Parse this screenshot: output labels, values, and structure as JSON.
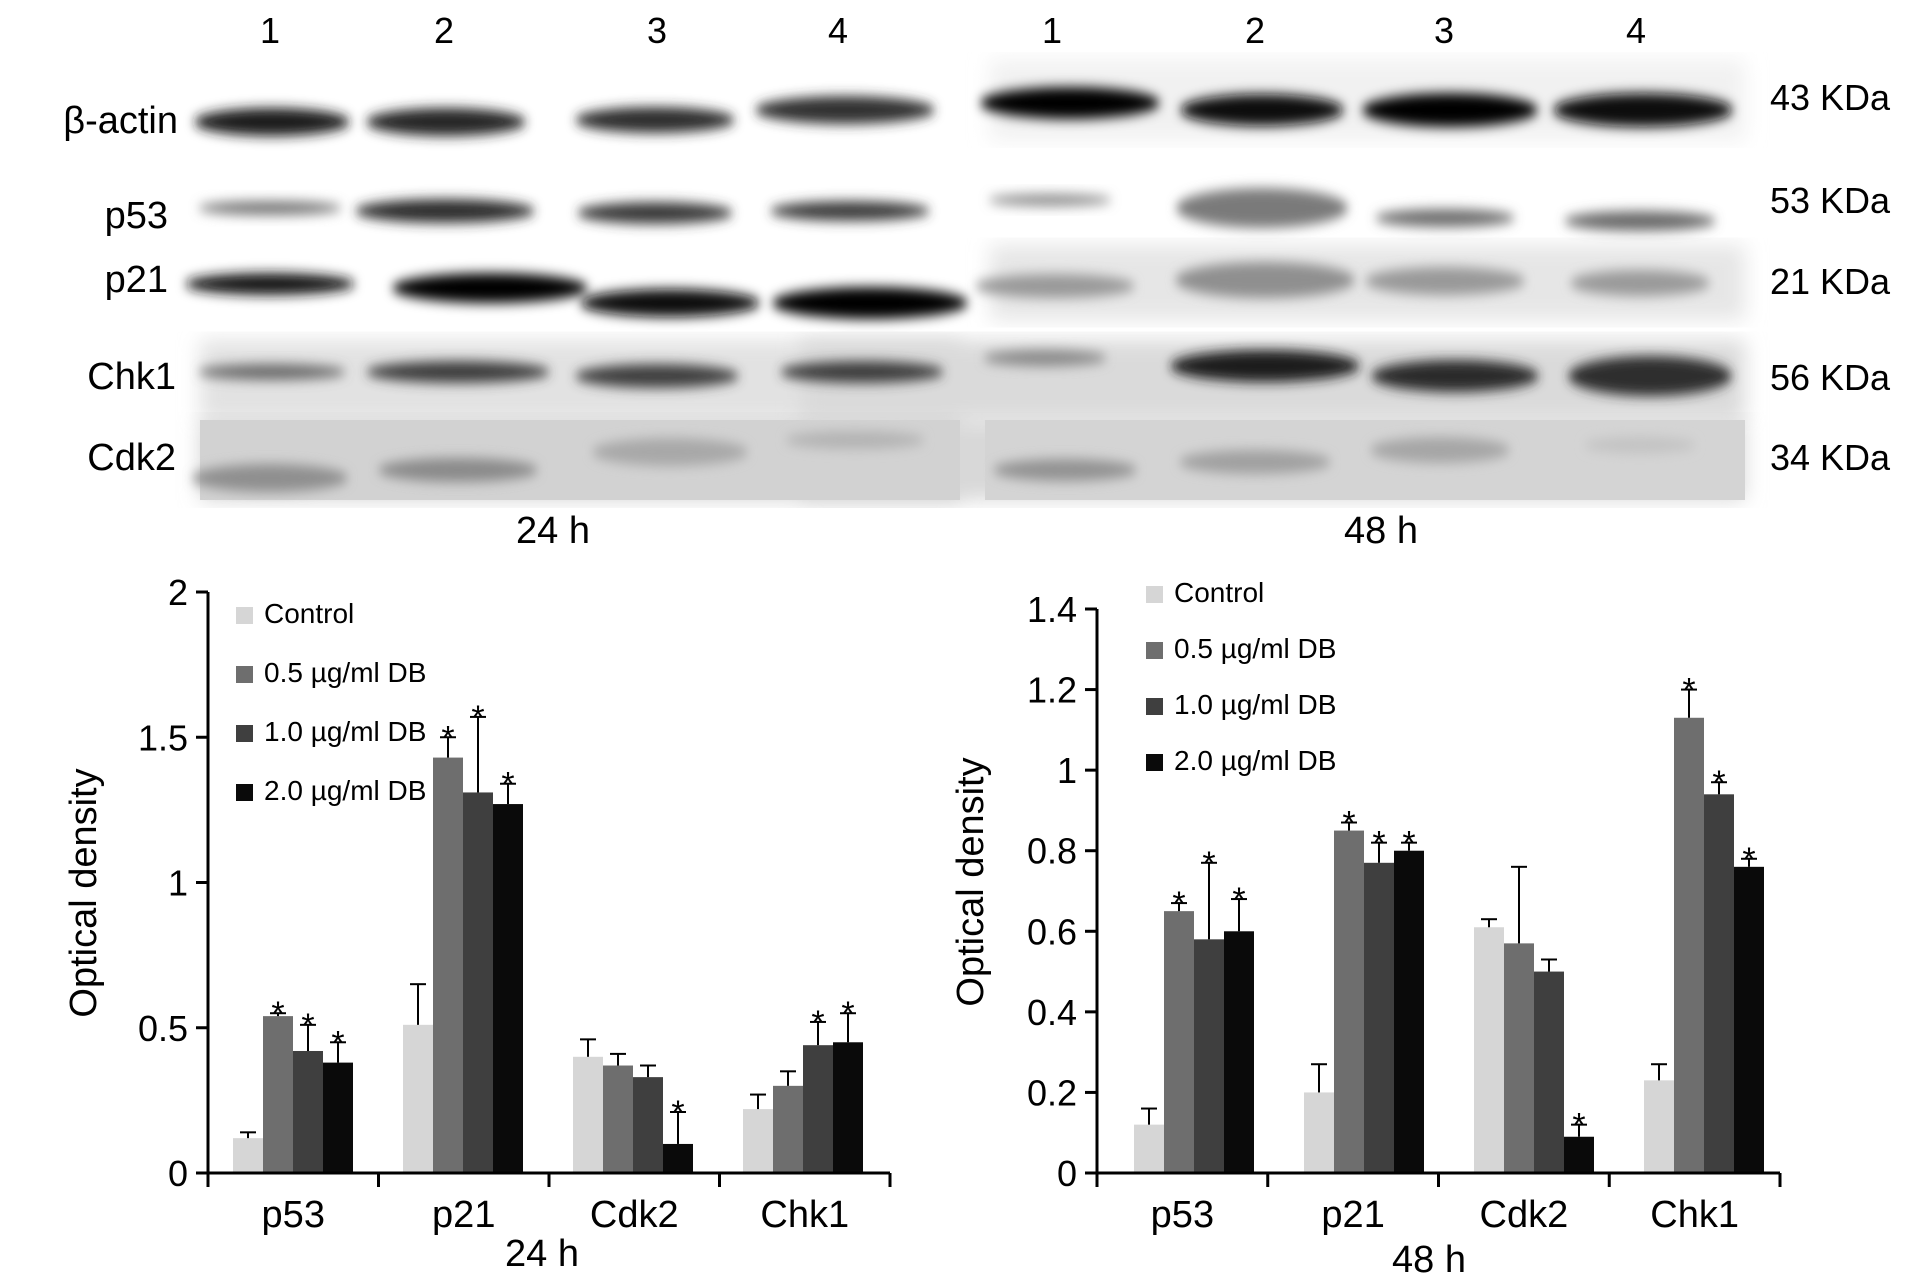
{
  "blot": {
    "lanes": [
      "1",
      "2",
      "3",
      "4"
    ],
    "rows": [
      {
        "label": "β-actin",
        "kda": "43 KDa"
      },
      {
        "label": "p53",
        "kda": "53 KDa"
      },
      {
        "label": "p21",
        "kda": "21 KDa"
      },
      {
        "label": "Chk1",
        "kda": "56 KDa"
      },
      {
        "label": "Cdk2",
        "kda": "34 KDa"
      }
    ],
    "panels": [
      "24 h",
      "48 h"
    ]
  },
  "chart_data": [
    {
      "type": "bar",
      "title": "",
      "xlabel": "24 h",
      "ylabel": "Optical density",
      "ylim": [
        0,
        2
      ],
      "yticks": [
        0,
        0.5,
        1,
        1.5,
        2
      ],
      "ytick_labels": [
        "0",
        "0.5",
        "1",
        "1.5",
        "2"
      ],
      "categories": [
        "p53",
        "p21",
        "Cdk2",
        "Chk1"
      ],
      "legend_position": "top-left",
      "series": [
        {
          "name": "Control",
          "color": "#d6d6d6",
          "values": [
            0.12,
            0.51,
            0.4,
            0.22
          ],
          "errors": [
            0.02,
            0.14,
            0.06,
            0.05
          ],
          "significant": [
            false,
            false,
            false,
            false
          ]
        },
        {
          "name": "0.5 µg/ml DB",
          "color": "#6e6e6e",
          "values": [
            0.54,
            1.43,
            0.37,
            0.3
          ],
          "errors": [
            0.01,
            0.07,
            0.04,
            0.05
          ],
          "significant": [
            true,
            true,
            false,
            false
          ]
        },
        {
          "name": "1.0 µg/ml DB",
          "color": "#3f3f3f",
          "values": [
            0.42,
            1.31,
            0.33,
            0.44
          ],
          "errors": [
            0.09,
            0.26,
            0.04,
            0.08
          ],
          "significant": [
            true,
            true,
            false,
            true
          ]
        },
        {
          "name": "2.0 µg/ml DB",
          "color": "#0a0a0a",
          "values": [
            0.38,
            1.27,
            0.1,
            0.45
          ],
          "errors": [
            0.07,
            0.07,
            0.11,
            0.1
          ],
          "significant": [
            true,
            true,
            true,
            true
          ]
        }
      ]
    },
    {
      "type": "bar",
      "title": "",
      "xlabel": "48 h",
      "ylabel": "Optical density",
      "ylim": [
        0,
        1.4
      ],
      "yticks": [
        0,
        0.2,
        0.4,
        0.6,
        0.8,
        1,
        1.2,
        1.4
      ],
      "ytick_labels": [
        "0",
        "0.2",
        "0.4",
        "0.6",
        "0.8",
        "1",
        "1.2",
        "1.4"
      ],
      "categories": [
        "p53",
        "p21",
        "Cdk2",
        "Chk1"
      ],
      "legend_position": "top-left",
      "series": [
        {
          "name": "Control",
          "color": "#d6d6d6",
          "values": [
            0.12,
            0.2,
            0.61,
            0.23
          ],
          "errors": [
            0.04,
            0.07,
            0.02,
            0.04
          ],
          "significant": [
            false,
            false,
            false,
            false
          ]
        },
        {
          "name": "0.5 µg/ml DB",
          "color": "#6e6e6e",
          "values": [
            0.65,
            0.85,
            0.57,
            1.13
          ],
          "errors": [
            0.02,
            0.02,
            0.19,
            0.07
          ],
          "significant": [
            true,
            true,
            false,
            true
          ]
        },
        {
          "name": "1.0 µg/ml DB",
          "color": "#3f3f3f",
          "values": [
            0.58,
            0.77,
            0.5,
            0.94
          ],
          "errors": [
            0.19,
            0.05,
            0.03,
            0.03
          ],
          "significant": [
            true,
            true,
            false,
            true
          ]
        },
        {
          "name": "2.0 µg/ml DB",
          "color": "#0a0a0a",
          "values": [
            0.6,
            0.8,
            0.09,
            0.76
          ],
          "errors": [
            0.08,
            0.02,
            0.03,
            0.02
          ],
          "significant": [
            true,
            true,
            true,
            true
          ]
        }
      ]
    }
  ]
}
